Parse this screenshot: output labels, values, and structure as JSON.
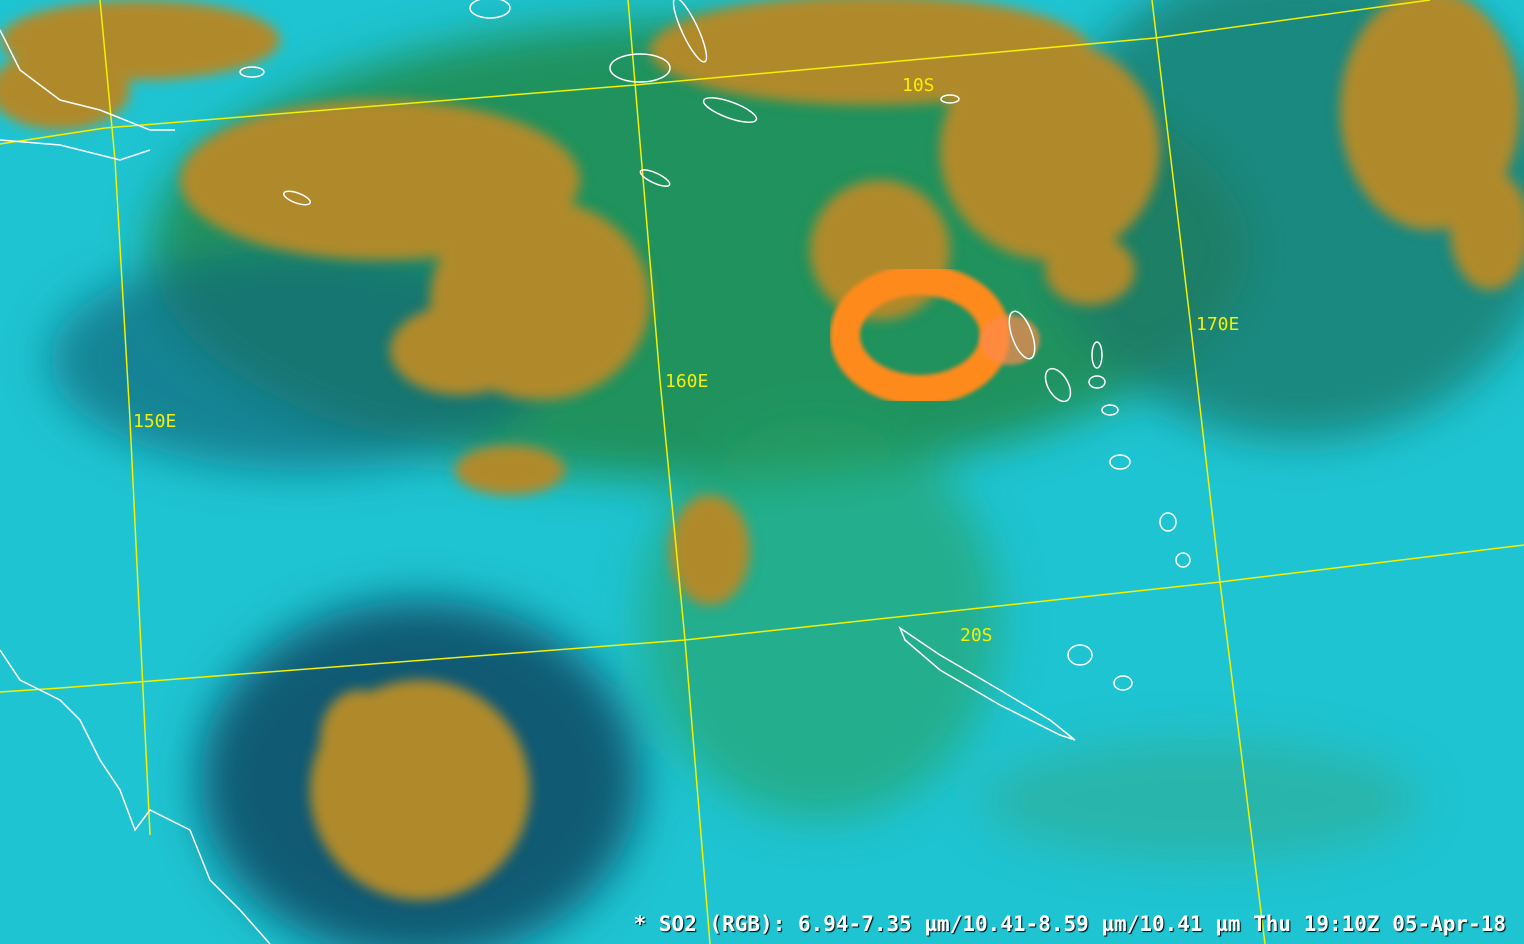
{
  "map": {
    "product": "SO2 (RGB)",
    "caption": "* SO2 (RGB): 6.94-7.35 µm/10.41-8.59 µm/10.41 µm Thu 19:10Z 05-Apr-18",
    "grid_labels": {
      "lat_10s": "10S",
      "lat_20s": "20S",
      "lon_150e": "150E",
      "lon_160e": "160E",
      "lon_170e": "170E"
    },
    "colors": {
      "clear_sky": "#1fc4d2",
      "high_cloud": "#b08a2a",
      "mid_layer": "#1e8a3a",
      "so2_plume": "#ff8a1e",
      "grid": "#f4f000",
      "coastline": "#ffffff"
    }
  }
}
